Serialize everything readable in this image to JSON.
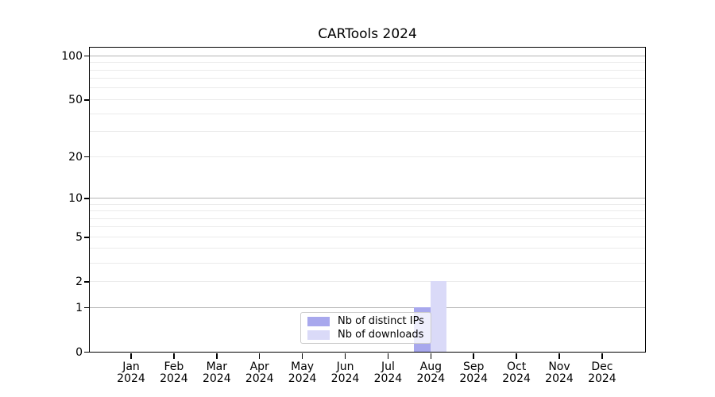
{
  "chart_data": {
    "type": "bar",
    "title": "CARTools 2024",
    "categories": [
      "Jan",
      "Feb",
      "Mar",
      "Apr",
      "May",
      "Jun",
      "Jul",
      "Aug",
      "Sep",
      "Oct",
      "Nov",
      "Dec"
    ],
    "year_label": "2024",
    "series": [
      {
        "name": "Nb of distinct IPs",
        "color": "#a8a8ed",
        "values": [
          0,
          0,
          0,
          0,
          0,
          0,
          0,
          1,
          0,
          0,
          0,
          0
        ]
      },
      {
        "name": "Nb of downloads",
        "color": "#dadaf8",
        "values": [
          0,
          0,
          0,
          0,
          0,
          0,
          0,
          2,
          0,
          0,
          0,
          0
        ]
      }
    ],
    "y_axis": {
      "scale": "log1p",
      "tick_labels": [
        0,
        1,
        2,
        5,
        10,
        20,
        50,
        100
      ],
      "major_gridlines": [
        1,
        10,
        100
      ],
      "minor_gridlines": [
        2,
        3,
        4,
        5,
        6,
        7,
        8,
        9,
        20,
        30,
        40,
        50,
        60,
        70,
        80,
        90
      ],
      "range_top_value": 113
    },
    "xlabel": "",
    "ylabel": "",
    "grid": true,
    "legend_position": "lower center"
  }
}
